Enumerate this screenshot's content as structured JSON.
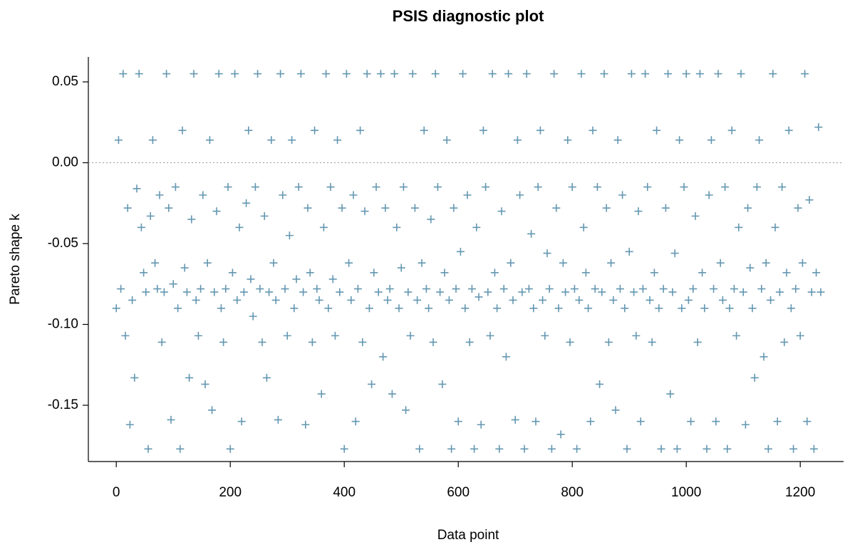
{
  "chart_data": {
    "type": "scatter",
    "title": "PSIS diagnostic plot",
    "x_label": "Data point",
    "y_label": "Pareto shape k",
    "color": "#6497b1",
    "marker": "+",
    "hline": 0,
    "xlim": [
      -49,
      1276
    ],
    "ylim": [
      -0.1848,
      0.0654
    ],
    "xticks": [
      0,
      200,
      400,
      600,
      800,
      1000,
      1200
    ],
    "yticks": [
      {
        "value": -0.15,
        "label": "-0.15"
      },
      {
        "value": -0.1,
        "label": "-0.10"
      },
      {
        "value": -0.05,
        "label": "-0.05"
      },
      {
        "value": 0,
        "label": "0.00"
      },
      {
        "value": 0.05,
        "label": "0.05"
      }
    ],
    "x": [
      0,
      4,
      8,
      12,
      16,
      20,
      24,
      28,
      32,
      36,
      40,
      44,
      48,
      52,
      56,
      60,
      64,
      68,
      72,
      76,
      80,
      84,
      88,
      92,
      96,
      100,
      104,
      108,
      112,
      116,
      120,
      124,
      128,
      132,
      136,
      140,
      144,
      148,
      152,
      156,
      160,
      164,
      168,
      172,
      176,
      180,
      184,
      188,
      192,
      196,
      200,
      204,
      208,
      212,
      216,
      220,
      224,
      228,
      232,
      236,
      240,
      244,
      248,
      252,
      256,
      260,
      264,
      268,
      272,
      276,
      280,
      284,
      288,
      292,
      296,
      300,
      304,
      308,
      312,
      316,
      320,
      324,
      328,
      332,
      336,
      340,
      344,
      348,
      352,
      356,
      360,
      364,
      368,
      372,
      376,
      380,
      384,
      388,
      392,
      396,
      400,
      404,
      408,
      412,
      416,
      420,
      424,
      428,
      432,
      436,
      440,
      444,
      448,
      452,
      456,
      460,
      464,
      468,
      472,
      476,
      480,
      484,
      488,
      492,
      496,
      500,
      504,
      508,
      512,
      516,
      520,
      524,
      528,
      532,
      536,
      540,
      544,
      548,
      552,
      556,
      560,
      564,
      568,
      572,
      576,
      580,
      584,
      588,
      592,
      596,
      600,
      604,
      608,
      612,
      616,
      620,
      624,
      628,
      632,
      636,
      640,
      644,
      648,
      652,
      656,
      660,
      664,
      668,
      672,
      676,
      680,
      684,
      688,
      692,
      696,
      700,
      704,
      708,
      712,
      716,
      720,
      724,
      728,
      732,
      736,
      740,
      744,
      748,
      752,
      756,
      760,
      764,
      768,
      772,
      776,
      780,
      784,
      788,
      792,
      796,
      800,
      804,
      808,
      812,
      816,
      820,
      824,
      828,
      832,
      836,
      840,
      844,
      848,
      852,
      856,
      860,
      864,
      868,
      872,
      876,
      880,
      884,
      888,
      892,
      896,
      900,
      904,
      908,
      912,
      916,
      920,
      924,
      928,
      932,
      936,
      940,
      944,
      948,
      952,
      956,
      960,
      964,
      968,
      972,
      976,
      980,
      984,
      988,
      992,
      996,
      1000,
      1004,
      1008,
      1012,
      1016,
      1020,
      1024,
      1028,
      1032,
      1036,
      1040,
      1044,
      1048,
      1052,
      1056,
      1060,
      1064,
      1068,
      1072,
      1076,
      1080,
      1084,
      1088,
      1092,
      1096,
      1100,
      1104,
      1108,
      1112,
      1116,
      1120,
      1124,
      1128,
      1132,
      1136,
      1140,
      1144,
      1148,
      1152,
      1156,
      1160,
      1164,
      1168,
      1172,
      1176,
      1180,
      1184,
      1188,
      1192,
      1196,
      1200,
      1204,
      1208,
      1212,
      1216,
      1220,
      1224,
      1228,
      1232,
      1236
    ],
    "y": [
      -0.09,
      0.014,
      -0.078,
      0.055,
      -0.107,
      -0.028,
      -0.162,
      -0.085,
      -0.133,
      -0.016,
      0.055,
      -0.04,
      -0.068,
      -0.08,
      -0.177,
      -0.033,
      0.014,
      -0.062,
      -0.078,
      -0.02,
      -0.111,
      -0.08,
      0.055,
      -0.028,
      -0.159,
      -0.075,
      -0.015,
      -0.09,
      -0.177,
      0.02,
      -0.065,
      -0.08,
      -0.133,
      -0.035,
      0.055,
      -0.085,
      -0.107,
      -0.078,
      -0.02,
      -0.137,
      -0.062,
      0.014,
      -0.153,
      -0.08,
      -0.03,
      0.055,
      -0.09,
      -0.111,
      -0.078,
      -0.015,
      -0.177,
      -0.068,
      0.055,
      -0.085,
      -0.04,
      -0.16,
      -0.08,
      -0.025,
      0.02,
      -0.072,
      -0.095,
      -0.015,
      0.055,
      -0.078,
      -0.111,
      -0.033,
      -0.133,
      -0.08,
      0.014,
      -0.062,
      -0.085,
      -0.159,
      0.055,
      -0.02,
      -0.078,
      -0.107,
      -0.045,
      0.014,
      -0.09,
      -0.072,
      -0.015,
      0.055,
      -0.08,
      -0.162,
      -0.028,
      -0.068,
      -0.111,
      0.02,
      -0.078,
      -0.085,
      -0.143,
      -0.04,
      0.055,
      -0.09,
      -0.015,
      -0.072,
      -0.107,
      0.014,
      -0.08,
      -0.028,
      -0.177,
      0.055,
      -0.062,
      -0.085,
      -0.02,
      -0.16,
      -0.078,
      0.02,
      -0.111,
      -0.03,
      0.055,
      -0.09,
      -0.137,
      -0.068,
      -0.015,
      -0.08,
      0.055,
      -0.12,
      -0.028,
      -0.085,
      -0.078,
      -0.143,
      0.055,
      -0.04,
      -0.09,
      -0.065,
      -0.015,
      -0.153,
      -0.08,
      -0.107,
      0.055,
      -0.028,
      -0.085,
      -0.177,
      -0.062,
      0.02,
      -0.078,
      -0.09,
      -0.035,
      -0.111,
      0.055,
      -0.015,
      -0.08,
      -0.137,
      -0.068,
      0.014,
      -0.085,
      -0.177,
      -0.028,
      -0.078,
      -0.16,
      -0.055,
      0.055,
      -0.09,
      -0.02,
      -0.111,
      -0.078,
      -0.177,
      -0.04,
      -0.083,
      -0.162,
      0.02,
      -0.015,
      -0.08,
      -0.107,
      0.055,
      -0.068,
      -0.09,
      -0.177,
      -0.03,
      -0.078,
      -0.12,
      0.055,
      -0.062,
      -0.085,
      -0.159,
      0.014,
      -0.02,
      -0.08,
      -0.177,
      0.055,
      -0.078,
      -0.044,
      -0.09,
      -0.16,
      -0.015,
      0.02,
      -0.085,
      -0.107,
      -0.056,
      -0.078,
      -0.177,
      0.055,
      -0.028,
      -0.09,
      -0.168,
      -0.062,
      -0.08,
      0.014,
      -0.111,
      -0.015,
      -0.078,
      -0.177,
      -0.085,
      0.055,
      -0.04,
      -0.068,
      -0.09,
      -0.16,
      0.02,
      -0.078,
      -0.015,
      -0.137,
      -0.08,
      0.055,
      -0.028,
      -0.111,
      -0.062,
      -0.085,
      -0.153,
      0.014,
      -0.078,
      -0.02,
      -0.09,
      -0.177,
      -0.055,
      0.055,
      -0.08,
      -0.107,
      -0.03,
      -0.16,
      -0.078,
      0.055,
      -0.015,
      -0.085,
      -0.111,
      -0.068,
      0.02,
      -0.09,
      -0.177,
      -0.078,
      -0.028,
      0.055,
      -0.143,
      -0.08,
      -0.056,
      -0.177,
      0.014,
      -0.09,
      -0.015,
      0.055,
      -0.085,
      -0.16,
      -0.078,
      -0.033,
      -0.111,
      0.055,
      -0.068,
      -0.09,
      -0.177,
      -0.02,
      0.014,
      -0.078,
      -0.16,
      0.055,
      -0.062,
      -0.085,
      -0.015,
      -0.177,
      -0.09,
      0.02,
      -0.078,
      -0.107,
      -0.04,
      0.055,
      -0.08,
      -0.162,
      -0.028,
      -0.065,
      -0.09,
      -0.133,
      -0.015,
      0.014,
      -0.078,
      -0.12,
      -0.062,
      -0.177,
      -0.085,
      0.055,
      -0.04,
      -0.16,
      -0.08,
      -0.015,
      -0.111,
      -0.068,
      0.02,
      -0.09,
      -0.177,
      -0.078,
      -0.028,
      -0.107,
      -0.062,
      0.055,
      -0.16,
      -0.023,
      -0.08,
      -0.177,
      -0.068,
      0.022,
      -0.08
    ]
  }
}
